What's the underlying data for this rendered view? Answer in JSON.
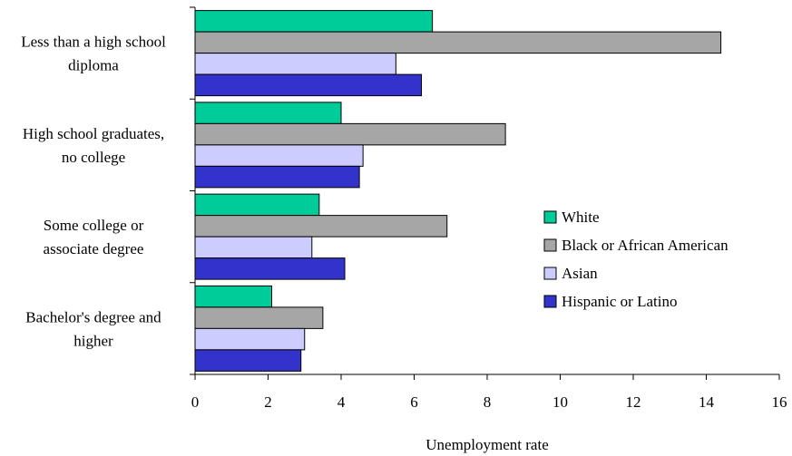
{
  "chart_data": {
    "type": "bar",
    "orientation": "horizontal",
    "title": "",
    "xlabel": "Unemployment rate",
    "ylabel": "",
    "xlim": [
      0,
      16
    ],
    "x_ticks": [
      0,
      2,
      4,
      6,
      8,
      10,
      12,
      14,
      16
    ],
    "grid": false,
    "legend_position": "right-center",
    "categories": [
      [
        "Less than a high school",
        "diploma"
      ],
      [
        "High school graduates,",
        "no college"
      ],
      [
        "Some college or",
        "associate degree"
      ],
      [
        "Bachelor's degree and",
        "higher"
      ]
    ],
    "series": [
      {
        "name": "White",
        "color": "#00cc99",
        "values": [
          6.5,
          4.0,
          3.4,
          2.1
        ]
      },
      {
        "name": "Black or African American",
        "color": "#a6a6a6",
        "values": [
          14.4,
          8.5,
          6.9,
          3.5
        ]
      },
      {
        "name": "Asian",
        "color": "#ccccff",
        "values": [
          5.5,
          4.6,
          3.2,
          3.0
        ]
      },
      {
        "name": "Hispanic or Latino",
        "color": "#3333cc",
        "values": [
          6.2,
          4.5,
          4.1,
          2.9
        ]
      }
    ]
  }
}
